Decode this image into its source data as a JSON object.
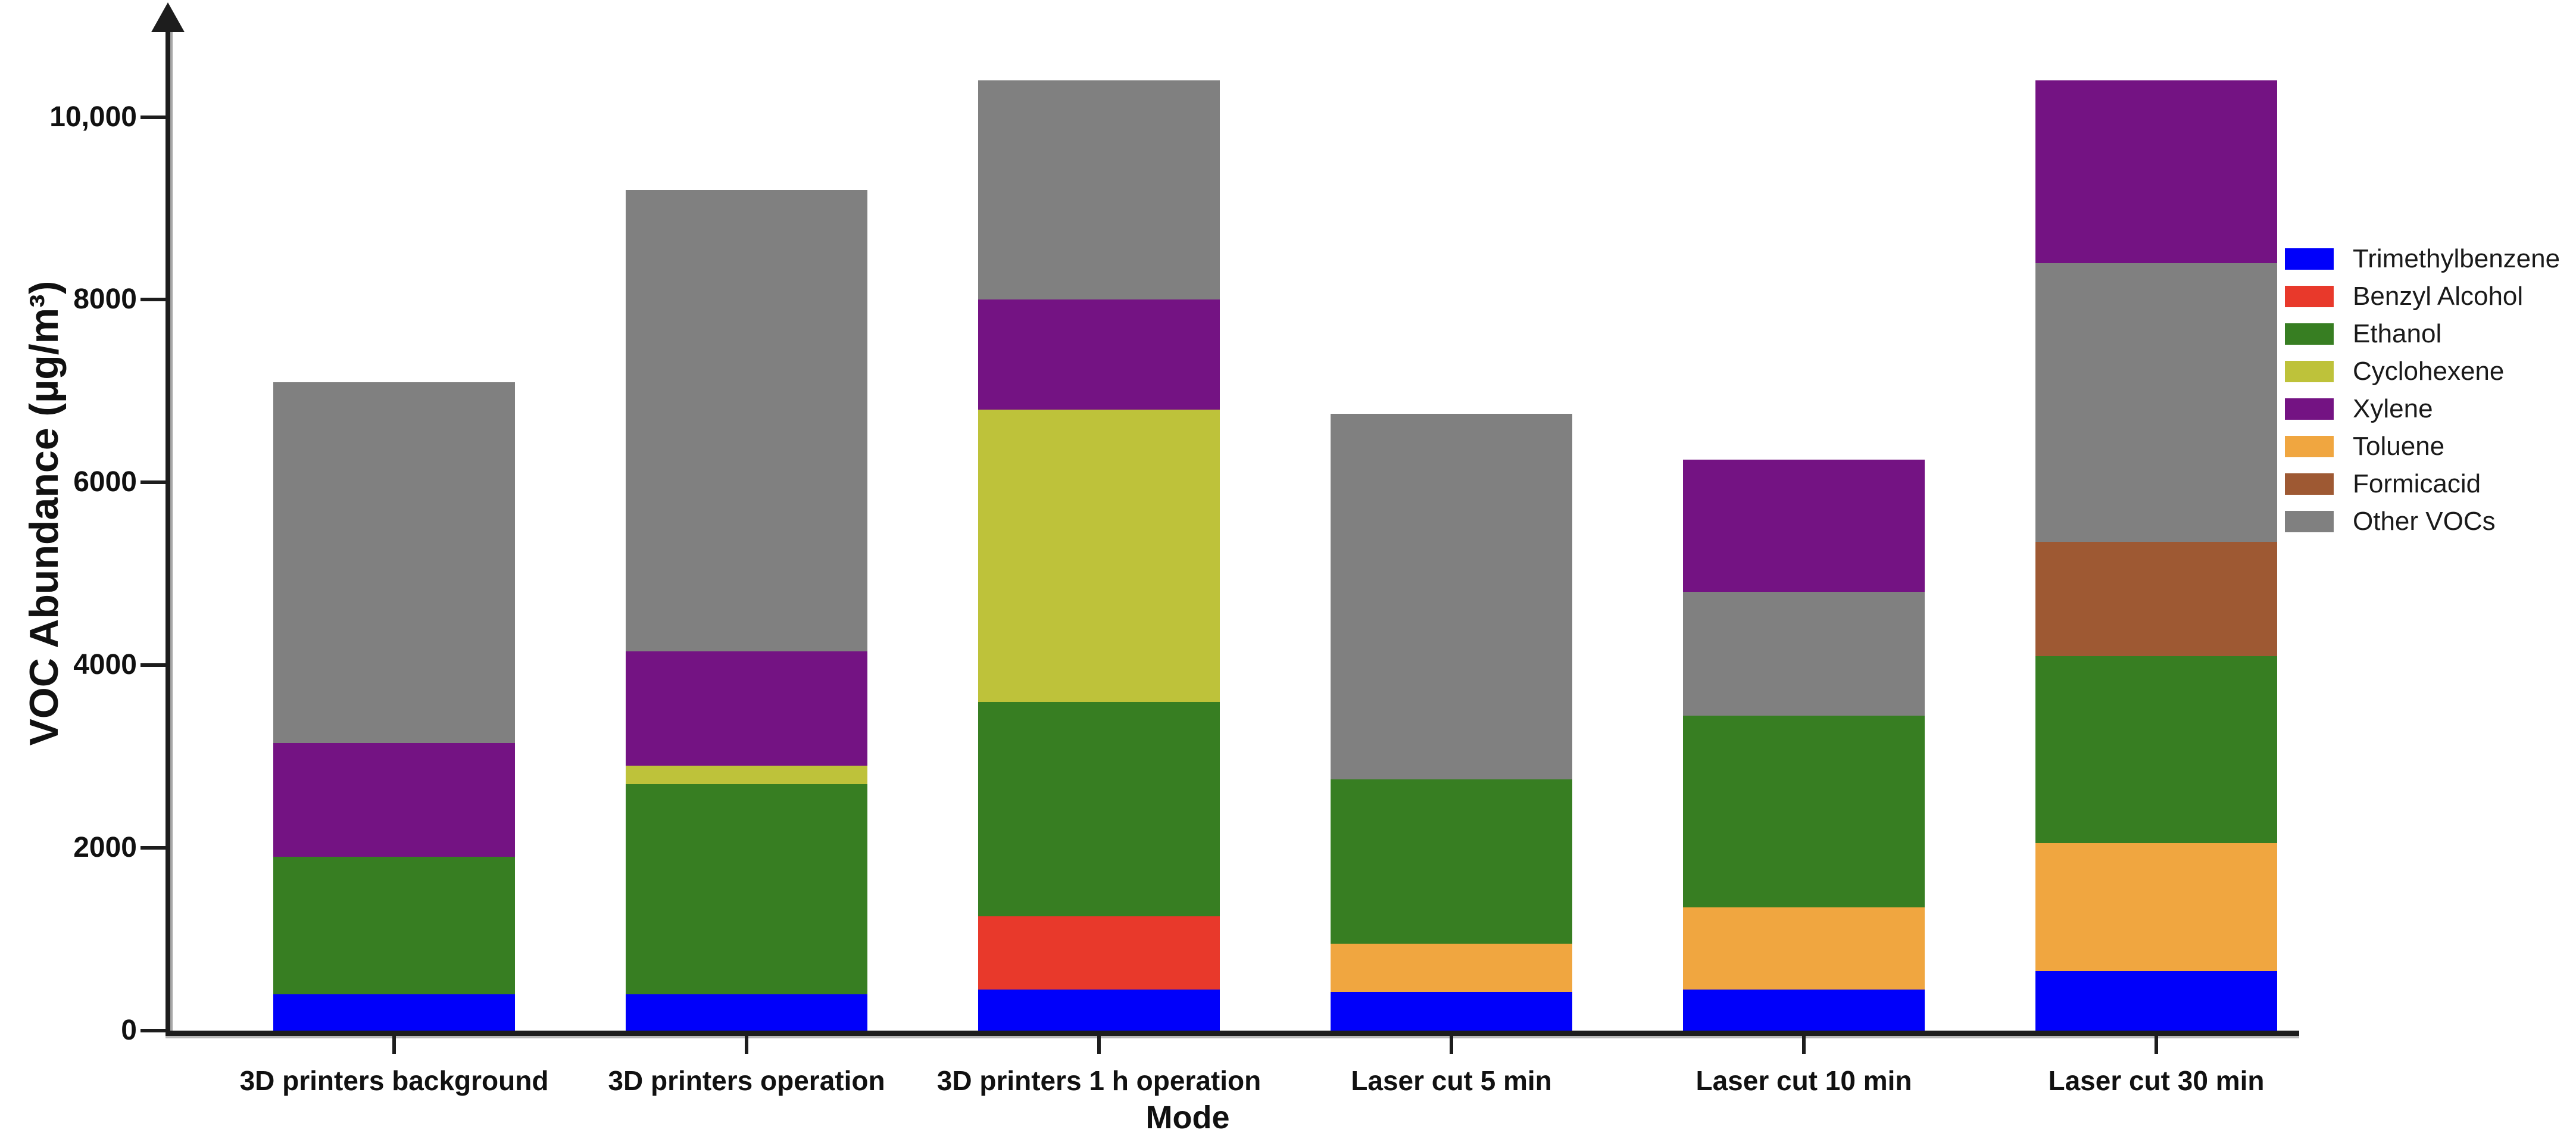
{
  "chart_data": {
    "type": "bar",
    "stacked": true,
    "title": "",
    "xlabel": "Mode",
    "ylabel": "VOC Abundance (µg/m³)",
    "ylim": [
      0,
      11000
    ],
    "grid": false,
    "legend_position": "right",
    "y_axis_arrow": true,
    "yticks": [
      {
        "value": 0,
        "label": "0"
      },
      {
        "value": 2000,
        "label": "2000"
      },
      {
        "value": 4000,
        "label": "4000"
      },
      {
        "value": 6000,
        "label": "6000"
      },
      {
        "value": 8000,
        "label": "8000"
      },
      {
        "value": 10000,
        "label": "10,000"
      }
    ],
    "categories": [
      "3D printers background",
      "3D printers operation",
      "3D printers 1 h operation",
      "Laser cut 5 min",
      "Laser cut 10 min",
      "Laser cut 30 min"
    ],
    "legend": [
      {
        "name": "Trimethylbenzene",
        "color": "#0000FA"
      },
      {
        "name": "Benzyl Alcohol",
        "color": "#E8392B"
      },
      {
        "name": "Ethanol",
        "color": "#377E22"
      },
      {
        "name": "Cyclohexene",
        "color": "#BEC23A"
      },
      {
        "name": "Xylene",
        "color": "#741383"
      },
      {
        "name": "Toluene",
        "color": "#F0A640"
      },
      {
        "name": "Formicacid",
        "color": "#9E5933"
      },
      {
        "name": "Other VOCs",
        "color": "#808080"
      }
    ],
    "bars": [
      {
        "category": "3D printers background",
        "total": 7100,
        "segments": [
          {
            "series": "Trimethylbenzene",
            "value": 400
          },
          {
            "series": "Ethanol",
            "value": 1500
          },
          {
            "series": "Xylene",
            "value": 1250
          },
          {
            "series": "Other VOCs",
            "value": 3950
          }
        ]
      },
      {
        "category": "3D printers operation",
        "total": 9200,
        "segments": [
          {
            "series": "Trimethylbenzene",
            "value": 400
          },
          {
            "series": "Ethanol",
            "value": 2300
          },
          {
            "series": "Cyclohexene",
            "value": 200
          },
          {
            "series": "Xylene",
            "value": 1250
          },
          {
            "series": "Other VOCs",
            "value": 5050
          }
        ]
      },
      {
        "category": "3D printers 1 h operation",
        "total": 10400,
        "segments": [
          {
            "series": "Trimethylbenzene",
            "value": 450
          },
          {
            "series": "Benzyl Alcohol",
            "value": 800
          },
          {
            "series": "Ethanol",
            "value": 2350
          },
          {
            "series": "Cyclohexene",
            "value": 3200
          },
          {
            "series": "Xylene",
            "value": 1200
          },
          {
            "series": "Other VOCs",
            "value": 2400
          }
        ]
      },
      {
        "category": "Laser cut 5 min",
        "total": 6750,
        "segments": [
          {
            "series": "Trimethylbenzene",
            "value": 425
          },
          {
            "series": "Toluene",
            "value": 525
          },
          {
            "series": "Ethanol",
            "value": 1800
          },
          {
            "series": "Other VOCs",
            "value": 4000
          }
        ]
      },
      {
        "category": "Laser cut 10 min",
        "total": 6250,
        "segments": [
          {
            "series": "Trimethylbenzene",
            "value": 450
          },
          {
            "series": "Toluene",
            "value": 900
          },
          {
            "series": "Ethanol",
            "value": 2100
          },
          {
            "series": "Other VOCs",
            "value": 1350
          },
          {
            "series": "Xylene",
            "value": 1450
          }
        ]
      },
      {
        "category": "Laser cut 30 min",
        "total": 10400,
        "segments": [
          {
            "series": "Trimethylbenzene",
            "value": 650
          },
          {
            "series": "Toluene",
            "value": 1400
          },
          {
            "series": "Ethanol",
            "value": 2050
          },
          {
            "series": "Formicacid",
            "value": 1250
          },
          {
            "series": "Other VOCs",
            "value": 3050
          },
          {
            "series": "Xylene",
            "value": 2000
          }
        ]
      }
    ]
  }
}
